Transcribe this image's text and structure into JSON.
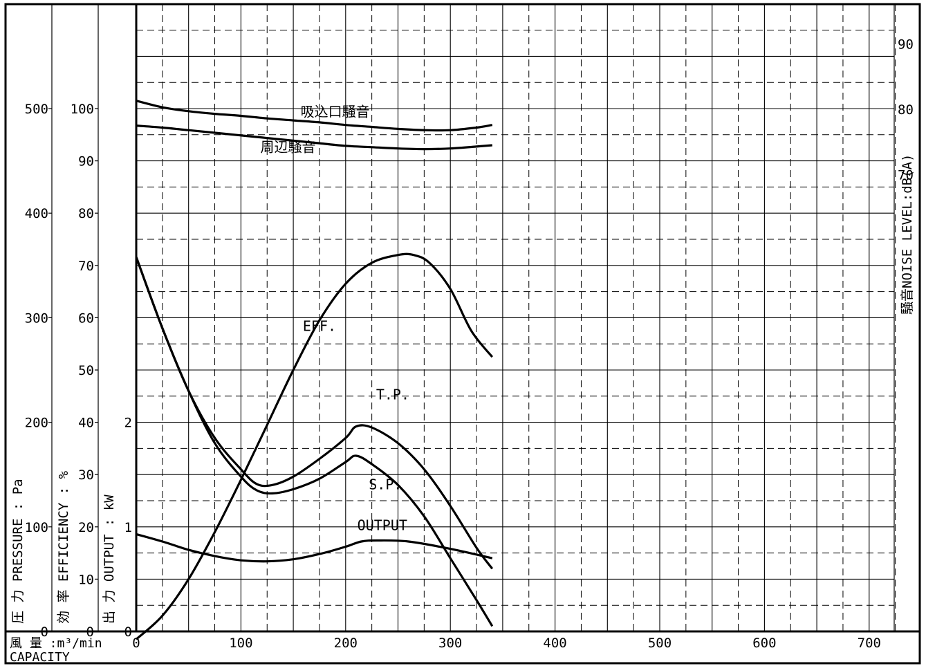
{
  "chart_data": {
    "type": "line",
    "title": "",
    "x_axis": {
      "label": "風 量 :m³/min",
      "label2": "CAPACITY",
      "range": [
        0,
        750
      ],
      "ticks": [
        "0",
        "100",
        "200",
        "300",
        "400",
        "500",
        "600",
        "700"
      ]
    },
    "y_axes": {
      "pressure": {
        "label": "圧 力 PRESSURE : Pa",
        "range": [
          0,
          500
        ],
        "ticks": [
          "0",
          "100",
          "200",
          "300",
          "400",
          "500"
        ]
      },
      "efficiency": {
        "label": "効 率 EFFICIENCY : %",
        "range": [
          0,
          100
        ],
        "ticks": [
          "0",
          "10",
          "20",
          "30",
          "40",
          "50",
          "60",
          "70",
          "80",
          "90",
          "100"
        ]
      },
      "output": {
        "label": "出 力 OUTPUT : kW",
        "range": [
          0,
          2
        ],
        "ticks": [
          "0",
          "1",
          "2"
        ]
      },
      "noise": {
        "label": "騒音NOISE LEVEL:dB(A)",
        "range": [
          70,
          90
        ],
        "ticks": [
          "70",
          "80",
          "90"
        ]
      }
    },
    "grid": true,
    "series": [
      {
        "name": "吸込口騒音",
        "axis": "noise",
        "x": [
          0,
          25,
          50,
          75,
          100,
          125,
          150,
          175,
          200,
          225,
          250,
          275,
          300,
          325,
          340
        ],
        "y": [
          81.3,
          80.3,
          79.7,
          79.3,
          79.0,
          78.6,
          78.3,
          78.0,
          77.6,
          77.3,
          77.0,
          76.8,
          76.8,
          77.2,
          77.6
        ]
      },
      {
        "name": "周辺騒音",
        "axis": "noise",
        "x": [
          0,
          25,
          50,
          75,
          100,
          125,
          150,
          175,
          200,
          225,
          250,
          275,
          300,
          325,
          340
        ],
        "y": [
          77.5,
          77.2,
          76.8,
          76.4,
          76.0,
          75.6,
          75.2,
          74.8,
          74.4,
          74.2,
          74.0,
          73.9,
          74.0,
          74.3,
          74.5
        ]
      },
      {
        "name": "EFF.",
        "axis": "efficiency",
        "x": [
          0,
          25,
          50,
          75,
          100,
          125,
          150,
          175,
          200,
          225,
          250,
          265,
          280,
          300,
          320,
          340
        ],
        "y": [
          -1.5,
          3.0,
          10.0,
          19.0,
          29.0,
          39.5,
          50.0,
          59.5,
          66.5,
          70.5,
          72.0,
          72.0,
          70.5,
          65.5,
          57.5,
          52.5
        ]
      },
      {
        "name": "T.P.",
        "axis": "pressure",
        "x": [
          0,
          25,
          50,
          75,
          100,
          115,
          130,
          150,
          175,
          200,
          210,
          225,
          250,
          275,
          300,
          325,
          340
        ],
        "y": [
          358,
          290,
          230,
          185,
          155,
          141,
          140,
          148,
          165,
          185,
          196,
          195,
          180,
          155,
          120,
          80,
          60
        ]
      },
      {
        "name": "S.P.",
        "axis": "pressure",
        "x": [
          0,
          25,
          50,
          75,
          100,
          115,
          130,
          150,
          175,
          200,
          210,
          225,
          250,
          275,
          300,
          325,
          340
        ],
        "y": [
          358,
          290,
          230,
          180,
          148,
          135,
          132,
          136,
          146,
          162,
          168,
          160,
          140,
          110,
          70,
          30,
          5
        ]
      },
      {
        "name": "OUTPUT",
        "axis": "output",
        "x": [
          0,
          25,
          50,
          75,
          100,
          125,
          150,
          175,
          200,
          215,
          230,
          260,
          300,
          340
        ],
        "y": [
          0.93,
          0.86,
          0.78,
          0.72,
          0.68,
          0.67,
          0.69,
          0.74,
          0.81,
          0.86,
          0.87,
          0.86,
          0.79,
          0.7
        ]
      }
    ],
    "annotations": [
      {
        "text": "吸込口騒音",
        "x": 190,
        "axis": "noise",
        "y": 78.9
      },
      {
        "text": "周辺騒音",
        "x": 145,
        "axis": "noise",
        "y": 73.5
      },
      {
        "text": "EFF.",
        "x": 175,
        "axis": "efficiency",
        "y": 57.5
      },
      {
        "text": "T.P.",
        "x": 245,
        "axis": "pressure",
        "y": 222
      },
      {
        "text": "S.P.",
        "x": 238,
        "axis": "pressure",
        "y": 136
      },
      {
        "text": "OUTPUT",
        "x": 235,
        "axis": "output",
        "y": 0.97
      }
    ]
  }
}
